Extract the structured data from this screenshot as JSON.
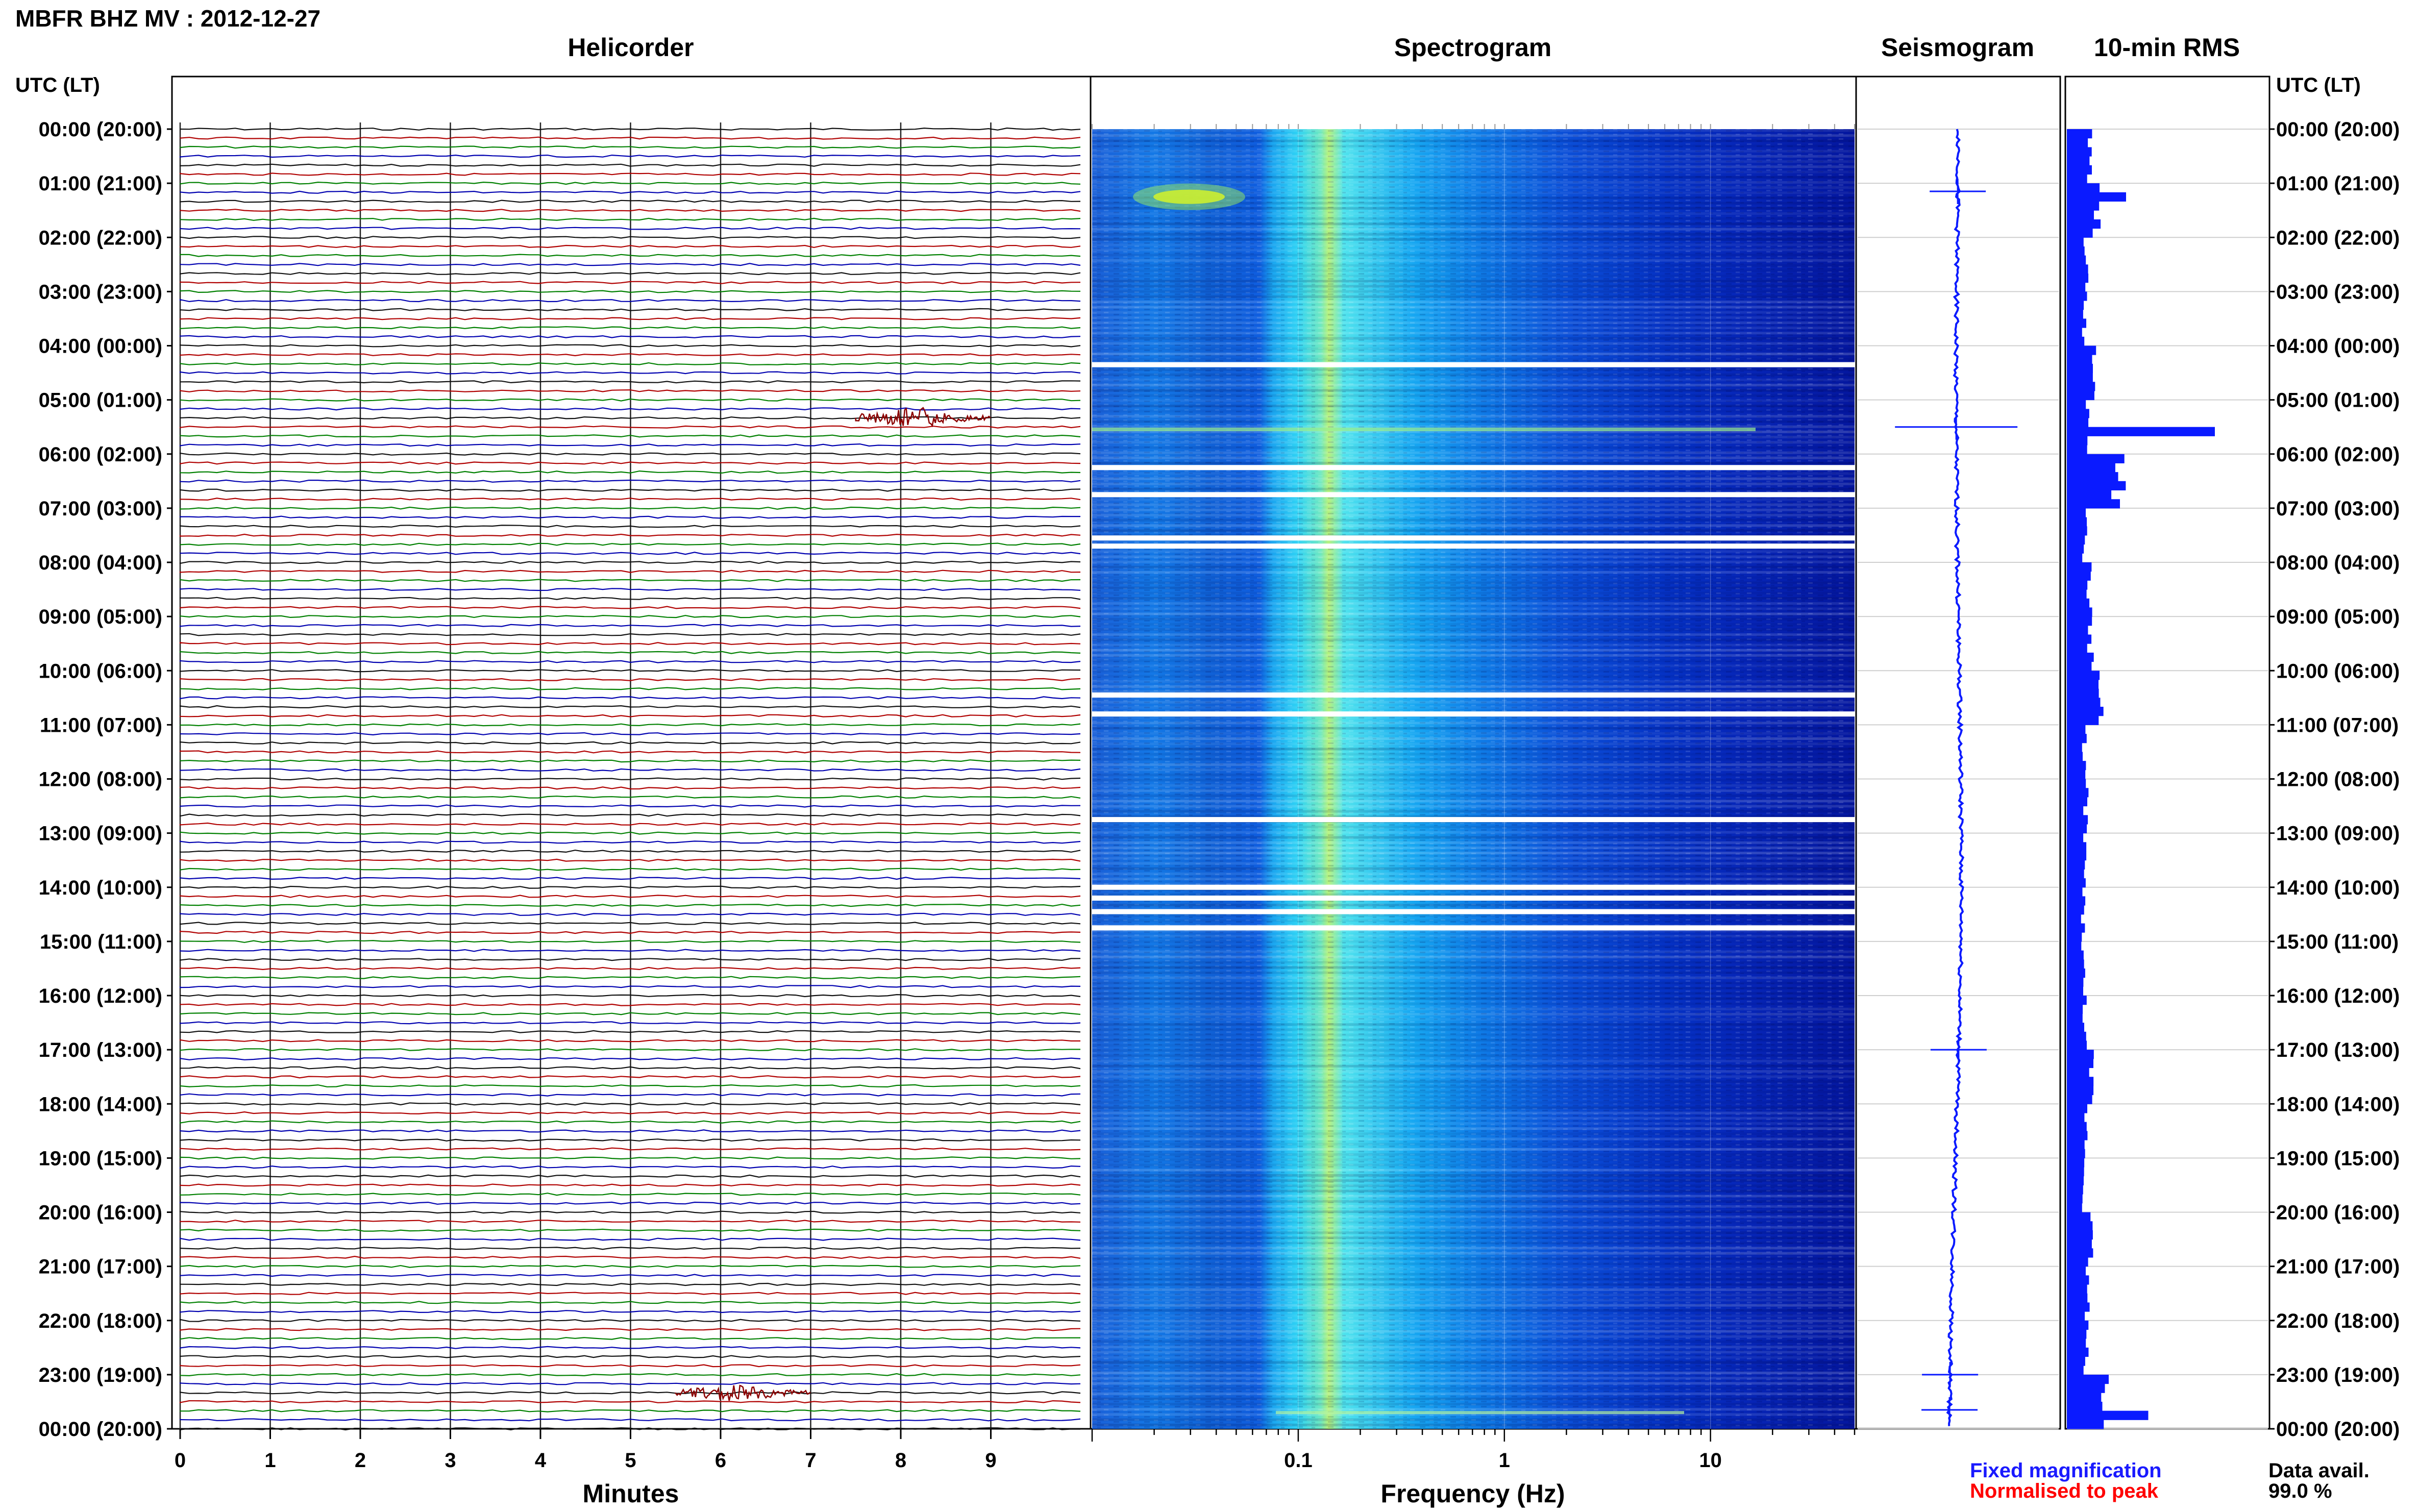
{
  "header": {
    "title": "MBFR BHZ MV : 2012-12-27"
  },
  "panels": {
    "helicorder": "Helicorder",
    "spectrogram": "Spectrogram",
    "seismogram": "Seismogram",
    "rms": "10-min RMS"
  },
  "time_axis_label": "UTC (LT)",
  "footer": {
    "fixed": "Fixed magnification",
    "normalised": "Normalised to peak",
    "data_avail_label": "Data avail.",
    "data_avail_value": "99.0 %"
  },
  "colors": {
    "trace_cycle": [
      "#101010",
      "#b00000",
      "#008000",
      "#0000b0"
    ],
    "event": "#8b0000",
    "seismogram": "#0a1aff",
    "rms": "#0a1aff",
    "fixed_note": "#1a1aff",
    "norm_note": "#ff0000",
    "spec_low": "#00008f",
    "spec_mid": "#00c8ff",
    "spec_high": "#ffff00"
  },
  "chart_data": [
    {
      "type": "line",
      "panel": "helicorder",
      "xlabel": "Minutes",
      "x_ticks": [
        "0",
        "1",
        "2",
        "3",
        "4",
        "5",
        "6",
        "7",
        "8",
        "9"
      ],
      "xlim": [
        0,
        10
      ],
      "time_ticks": [
        "00:00 (20:00)",
        "01:00 (21:00)",
        "02:00 (22:00)",
        "03:00 (23:00)",
        "04:00 (00:00)",
        "05:00 (01:00)",
        "06:00 (02:00)",
        "07:00 (03:00)",
        "08:00 (04:00)",
        "09:00 (05:00)",
        "10:00 (06:00)",
        "11:00 (07:00)",
        "12:00 (08:00)",
        "13:00 (09:00)",
        "14:00 (10:00)",
        "15:00 (11:00)",
        "16:00 (12:00)",
        "17:00 (13:00)",
        "18:00 (14:00)",
        "19:00 (15:00)",
        "20:00 (16:00)",
        "21:00 (17:00)",
        "22:00 (18:00)",
        "23:00 (19:00)",
        "00:00 (20:00)"
      ],
      "traces_per_hour": 6,
      "events": [
        {
          "hour": 5.33,
          "start_min": 7.5,
          "end_min": 9.0,
          "amplitude": 1.0
        },
        {
          "hour": 23.33,
          "start_min": 5.5,
          "end_min": 7.0,
          "amplitude": 0.9
        }
      ]
    },
    {
      "type": "heatmap",
      "panel": "spectrogram",
      "xlabel": "Frequency (Hz)",
      "x_scale": "log",
      "x_ticks": [
        "0.1",
        "1",
        "10"
      ],
      "xlim": [
        0.01,
        50
      ],
      "peak_band_hz": [
        0.15,
        0.3
      ],
      "gaps_hours": [
        4.35,
        6.25,
        6.75,
        7.55,
        7.7,
        10.45,
        10.8,
        12.75,
        14.0,
        14.2,
        14.45,
        14.75
      ]
    },
    {
      "type": "line",
      "panel": "seismogram",
      "spikes_hours": [
        1.15,
        5.5,
        17.0,
        23.0,
        23.65
      ]
    },
    {
      "type": "bar",
      "panel": "rms",
      "values_by_hour": [
        0.15,
        0.2,
        0.13,
        0.12,
        0.18,
        0.15,
        0.35,
        0.12,
        0.15,
        0.16,
        0.22,
        0.12,
        0.13,
        0.12,
        0.11,
        0.11,
        0.12,
        0.16,
        0.13,
        0.12,
        0.16,
        0.14,
        0.13,
        0.25,
        0.12
      ],
      "peaks": [
        {
          "hour": 1.2,
          "value": 0.4
        },
        {
          "hour": 5.55,
          "value": 1.0
        },
        {
          "hour": 23.6,
          "value": 0.55
        }
      ]
    }
  ]
}
